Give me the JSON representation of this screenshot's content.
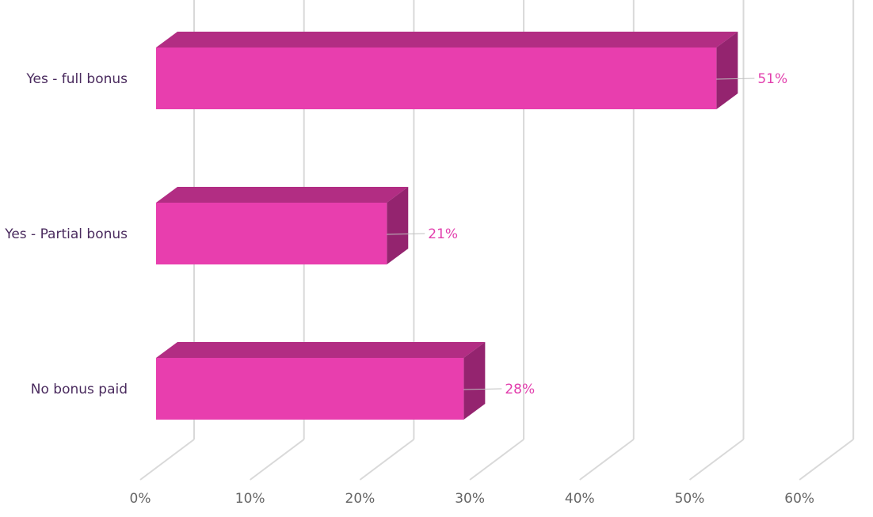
{
  "chart_data": {
    "type": "bar",
    "orientation": "horizontal",
    "style": "3d",
    "categories": [
      "Yes - full bonus",
      "Yes - Partial bonus",
      "No bonus paid"
    ],
    "values": [
      51,
      21,
      28
    ],
    "data_labels": [
      "51%",
      "21%",
      "28%"
    ],
    "x_ticks": [
      "0%",
      "10%",
      "20%",
      "30%",
      "40%",
      "50%",
      "60%"
    ],
    "xlim": [
      0,
      60
    ],
    "grid": true,
    "legend": "none",
    "colors": {
      "bar_front": "#e83eae",
      "bar_top": "#b22d83",
      "bar_side": "#94246f",
      "grid": "#d9d9d9",
      "leader": "#bfbfbf"
    }
  }
}
